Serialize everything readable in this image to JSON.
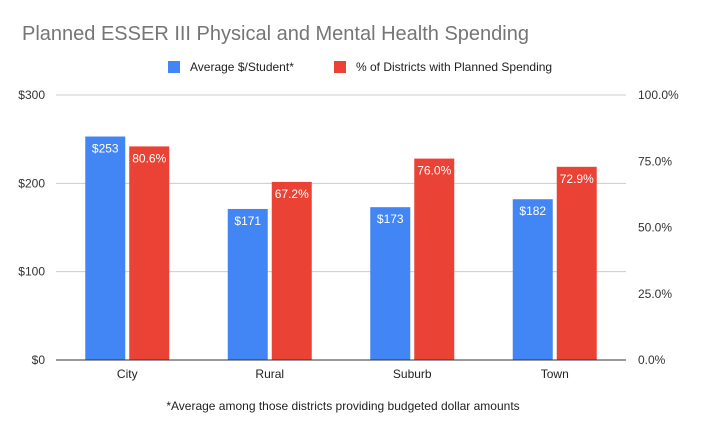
{
  "chart_data": {
    "type": "bar",
    "title": "Planned ESSER III Physical and Mental Health Spending",
    "xlabel": "",
    "ylabel": "",
    "footnote": "*Average among those districts providing budgeted dollar amounts",
    "categories": [
      "City",
      "Rural",
      "Suburb",
      "Town"
    ],
    "series": [
      {
        "name": "Average $/Student*",
        "axis": "left",
        "color": "#4285f4",
        "values": [
          253,
          171,
          173,
          182
        ],
        "labels": [
          "$253",
          "$171",
          "$173",
          "$182"
        ]
      },
      {
        "name": "% of Districts with Planned Spending",
        "axis": "right",
        "color": "#ea4335",
        "values": [
          80.6,
          67.2,
          76.0,
          72.9
        ],
        "labels": [
          "80.6%",
          "67.2%",
          "76.0%",
          "72.9%"
        ]
      }
    ],
    "ylim": [
      0,
      300
    ],
    "y2lim": [
      0,
      100
    ],
    "yticks": [
      "$0",
      "$100",
      "$200",
      "$300"
    ],
    "y2ticks": [
      "0.0%",
      "25.0%",
      "50.0%",
      "75.0%",
      "100.0%"
    ],
    "legend": "top-center",
    "grid": true
  }
}
